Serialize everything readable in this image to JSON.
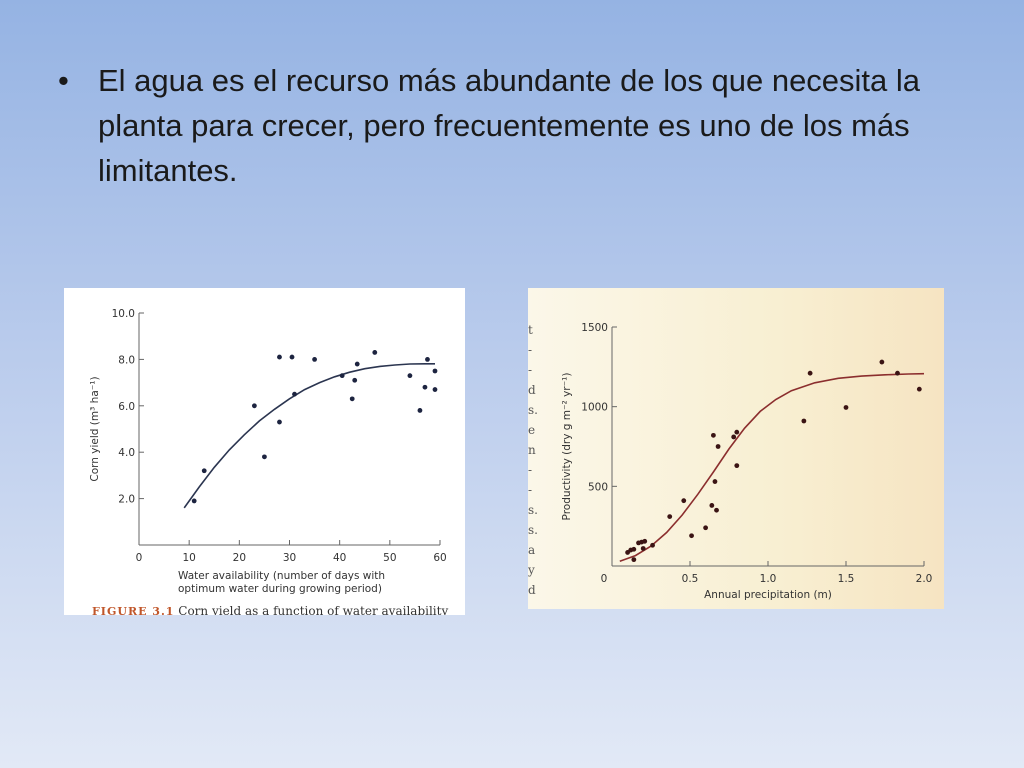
{
  "slide": {
    "bullet_symbol": "•",
    "bullet_text": "El agua es el recurso más abundante de los que necesita la planta para crecer, pero frecuentemente es uno de los más limitantes."
  },
  "left_figure": {
    "caption_label": "FIGURE 3.1",
    "caption_text": "Corn yield as a function of water availability"
  },
  "right_figure": {
    "margin_glyphs": [
      "t",
      "-",
      "-",
      "d",
      "s.",
      "e",
      "n",
      "-",
      "-",
      "s.",
      "s.",
      "a",
      "y",
      "d"
    ]
  },
  "chart_data": [
    {
      "type": "scatter",
      "title": "",
      "xlabel_lines": [
        "Water availability (number of days with",
        "optimum water during growing period)"
      ],
      "ylabel": "Corn yield (m³ ha⁻¹)",
      "xlim": [
        0,
        60
      ],
      "ylim": [
        0,
        10
      ],
      "x_ticks": [
        0,
        10,
        20,
        30,
        40,
        50,
        60
      ],
      "x_tick_labels": [
        "0",
        "10",
        "20",
        "30",
        "40",
        "50",
        "60"
      ],
      "y_ticks": [
        2,
        4,
        6,
        8,
        10
      ],
      "y_tick_labels": [
        "2.0",
        "4.0",
        "6.0",
        "8.0",
        "10.0"
      ],
      "points": [
        [
          11,
          1.9
        ],
        [
          13,
          3.2
        ],
        [
          23,
          6.0
        ],
        [
          25,
          3.8
        ],
        [
          28,
          8.1
        ],
        [
          28,
          5.3
        ],
        [
          30.5,
          8.1
        ],
        [
          31,
          6.5
        ],
        [
          35,
          8.0
        ],
        [
          40.5,
          7.3
        ],
        [
          42.5,
          6.3
        ],
        [
          43,
          7.1
        ],
        [
          43.5,
          7.8
        ],
        [
          47,
          8.3
        ],
        [
          54,
          7.3
        ],
        [
          56,
          5.8
        ],
        [
          57,
          6.8
        ],
        [
          57.5,
          8.0
        ],
        [
          59,
          6.7
        ],
        [
          59,
          7.5
        ]
      ],
      "fit_curve": [
        [
          9,
          1.6
        ],
        [
          12,
          2.5
        ],
        [
          15,
          3.35
        ],
        [
          18,
          4.1
        ],
        [
          21,
          4.75
        ],
        [
          24,
          5.35
        ],
        [
          27,
          5.85
        ],
        [
          30,
          6.3
        ],
        [
          33,
          6.7
        ],
        [
          36,
          7.0
        ],
        [
          39,
          7.25
        ],
        [
          42,
          7.45
        ],
        [
          45,
          7.6
        ],
        [
          48,
          7.7
        ],
        [
          51,
          7.76
        ],
        [
          54,
          7.8
        ],
        [
          57,
          7.81
        ],
        [
          59,
          7.81
        ]
      ],
      "colors": {
        "points": "#1d2440",
        "curve": "#2b3550",
        "axis": "#666666"
      }
    },
    {
      "type": "scatter",
      "title": "",
      "xlabel": "Annual precipitation (m)",
      "ylabel": "Productivity (dry g m⁻² yr⁻¹)",
      "xlim": [
        0,
        2.0
      ],
      "ylim": [
        0,
        1500
      ],
      "x_ticks": [
        0,
        0.5,
        1.0,
        1.5,
        2.0
      ],
      "x_tick_labels": [
        "0",
        "0.5",
        "1.0",
        "1.5",
        "2.0"
      ],
      "y_ticks": [
        500,
        1000,
        1500
      ],
      "y_tick_labels": [
        "500",
        "1000",
        "1500"
      ],
      "points": [
        [
          0.1,
          85
        ],
        [
          0.12,
          100
        ],
        [
          0.14,
          105
        ],
        [
          0.14,
          40
        ],
        [
          0.17,
          145
        ],
        [
          0.19,
          150
        ],
        [
          0.2,
          110
        ],
        [
          0.21,
          155
        ],
        [
          0.26,
          130
        ],
        [
          0.37,
          310
        ],
        [
          0.46,
          410
        ],
        [
          0.51,
          190
        ],
        [
          0.6,
          240
        ],
        [
          0.64,
          380
        ],
        [
          0.65,
          820
        ],
        [
          0.66,
          530
        ],
        [
          0.67,
          350
        ],
        [
          0.68,
          750
        ],
        [
          0.78,
          810
        ],
        [
          0.8,
          840
        ],
        [
          0.8,
          630
        ],
        [
          1.23,
          910
        ],
        [
          1.27,
          1210
        ],
        [
          1.5,
          995
        ],
        [
          1.73,
          1280
        ],
        [
          1.83,
          1210
        ],
        [
          1.97,
          1110
        ]
      ],
      "fit_curve": [
        [
          0.05,
          30
        ],
        [
          0.15,
          65
        ],
        [
          0.25,
          125
        ],
        [
          0.35,
          210
        ],
        [
          0.45,
          320
        ],
        [
          0.55,
          450
        ],
        [
          0.65,
          590
        ],
        [
          0.75,
          735
        ],
        [
          0.85,
          865
        ],
        [
          0.95,
          970
        ],
        [
          1.05,
          1045
        ],
        [
          1.15,
          1100
        ],
        [
          1.3,
          1150
        ],
        [
          1.45,
          1178
        ],
        [
          1.6,
          1192
        ],
        [
          1.75,
          1200
        ],
        [
          1.9,
          1205
        ],
        [
          2.0,
          1207
        ]
      ],
      "colors": {
        "points": "#3b1414",
        "curve": "#8b2e2e",
        "axis": "#666666"
      }
    }
  ]
}
